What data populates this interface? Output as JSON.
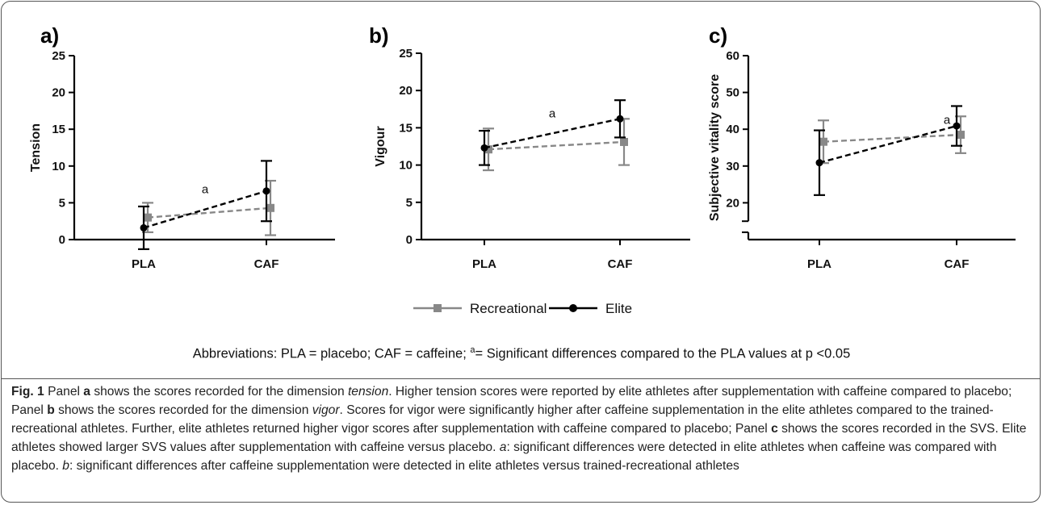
{
  "chart_data": [
    {
      "type": "line",
      "panel_label": "a)",
      "ylabel": "Tension",
      "categories": [
        "PLA",
        "CAF"
      ],
      "ylim": [
        0,
        25
      ],
      "yticks": [
        0,
        5,
        10,
        15,
        20,
        25
      ],
      "series": [
        {
          "name": "Recreational",
          "color": "#888888",
          "marker": "square",
          "values": [
            3.0,
            4.3
          ],
          "error": [
            2.0,
            3.7
          ]
        },
        {
          "name": "Elite",
          "color": "#000000",
          "marker": "circle",
          "values": [
            1.6,
            6.6
          ],
          "error": [
            2.9,
            4.1
          ]
        }
      ],
      "annotations": [
        {
          "text": "a",
          "x": 0.5,
          "y": 6.3
        }
      ]
    },
    {
      "type": "line",
      "panel_label": "b)",
      "ylabel": "Vigour",
      "categories": [
        "PLA",
        "CAF"
      ],
      "ylim": [
        0,
        25
      ],
      "yticks": [
        0,
        5,
        10,
        15,
        20,
        25
      ],
      "series": [
        {
          "name": "Recreational",
          "color": "#888888",
          "marker": "square",
          "values": [
            12.1,
            13.1
          ],
          "error": [
            2.8,
            3.1
          ]
        },
        {
          "name": "Elite",
          "color": "#000000",
          "marker": "circle",
          "values": [
            12.3,
            16.2
          ],
          "error": [
            2.3,
            2.5
          ]
        }
      ],
      "annotations": [
        {
          "text": "a",
          "x": 0.5,
          "y": 16.4
        }
      ]
    },
    {
      "type": "line",
      "panel_label": "c)",
      "ylabel": "Subjective vitality score",
      "categories": [
        "PLA",
        "CAF"
      ],
      "ylim": [
        10,
        60
      ],
      "yticks": [
        20,
        30,
        40,
        50,
        60
      ],
      "axis_break": true,
      "series": [
        {
          "name": "Recreational",
          "color": "#888888",
          "marker": "square",
          "values": [
            36.6,
            38.5
          ],
          "error": [
            5.8,
            5.0
          ]
        },
        {
          "name": "Elite",
          "color": "#000000",
          "marker": "circle",
          "values": [
            30.9,
            40.9
          ],
          "error": [
            8.8,
            5.4
          ]
        }
      ],
      "annotations": [
        {
          "text": "a",
          "x": 0.93,
          "y": 41.5
        }
      ]
    }
  ],
  "legend": {
    "items": [
      {
        "label": "Recreational",
        "color": "#888888",
        "marker": "square"
      },
      {
        "label": "Elite",
        "color": "#000000",
        "marker": "circle"
      }
    ]
  },
  "abbreviations": {
    "lead": "Abbreviations: PLA = placebo; CAF = caffeine; ",
    "sup": "a",
    "tail": "= Significant differences compared to the PLA values at p <0.05"
  },
  "caption": {
    "fig_label": "Fig. 1",
    "t1": " Panel ",
    "b1": "a",
    "t2": " shows the scores recorded for the dimension ",
    "i1": "tension",
    "t3": ". Higher tension scores were reported by elite athletes after supplementation with caffeine compared to placebo; Panel ",
    "b2": "b",
    "t4": " shows the scores recorded for the dimension ",
    "i2": "vigor",
    "t5": ". Scores for vigor were significantly higher after caffeine supplementation in the elite athletes compared to the trained-recreational athletes. Further, elite athletes returned higher vigor scores after supplementation with caffeine compared to placebo; Panel ",
    "b3": "c",
    "t6": " shows the scores recorded in the SVS. Elite athletes showed larger SVS values after supplementation with caffeine versus placebo. ",
    "i3": "a",
    "t7": ": significant differences were detected in elite athletes when caffeine was compared with placebo. ",
    "i4": "b",
    "t8": ": significant differences after caffeine supplementation were detected in elite athletes versus trained-recreational athletes"
  }
}
